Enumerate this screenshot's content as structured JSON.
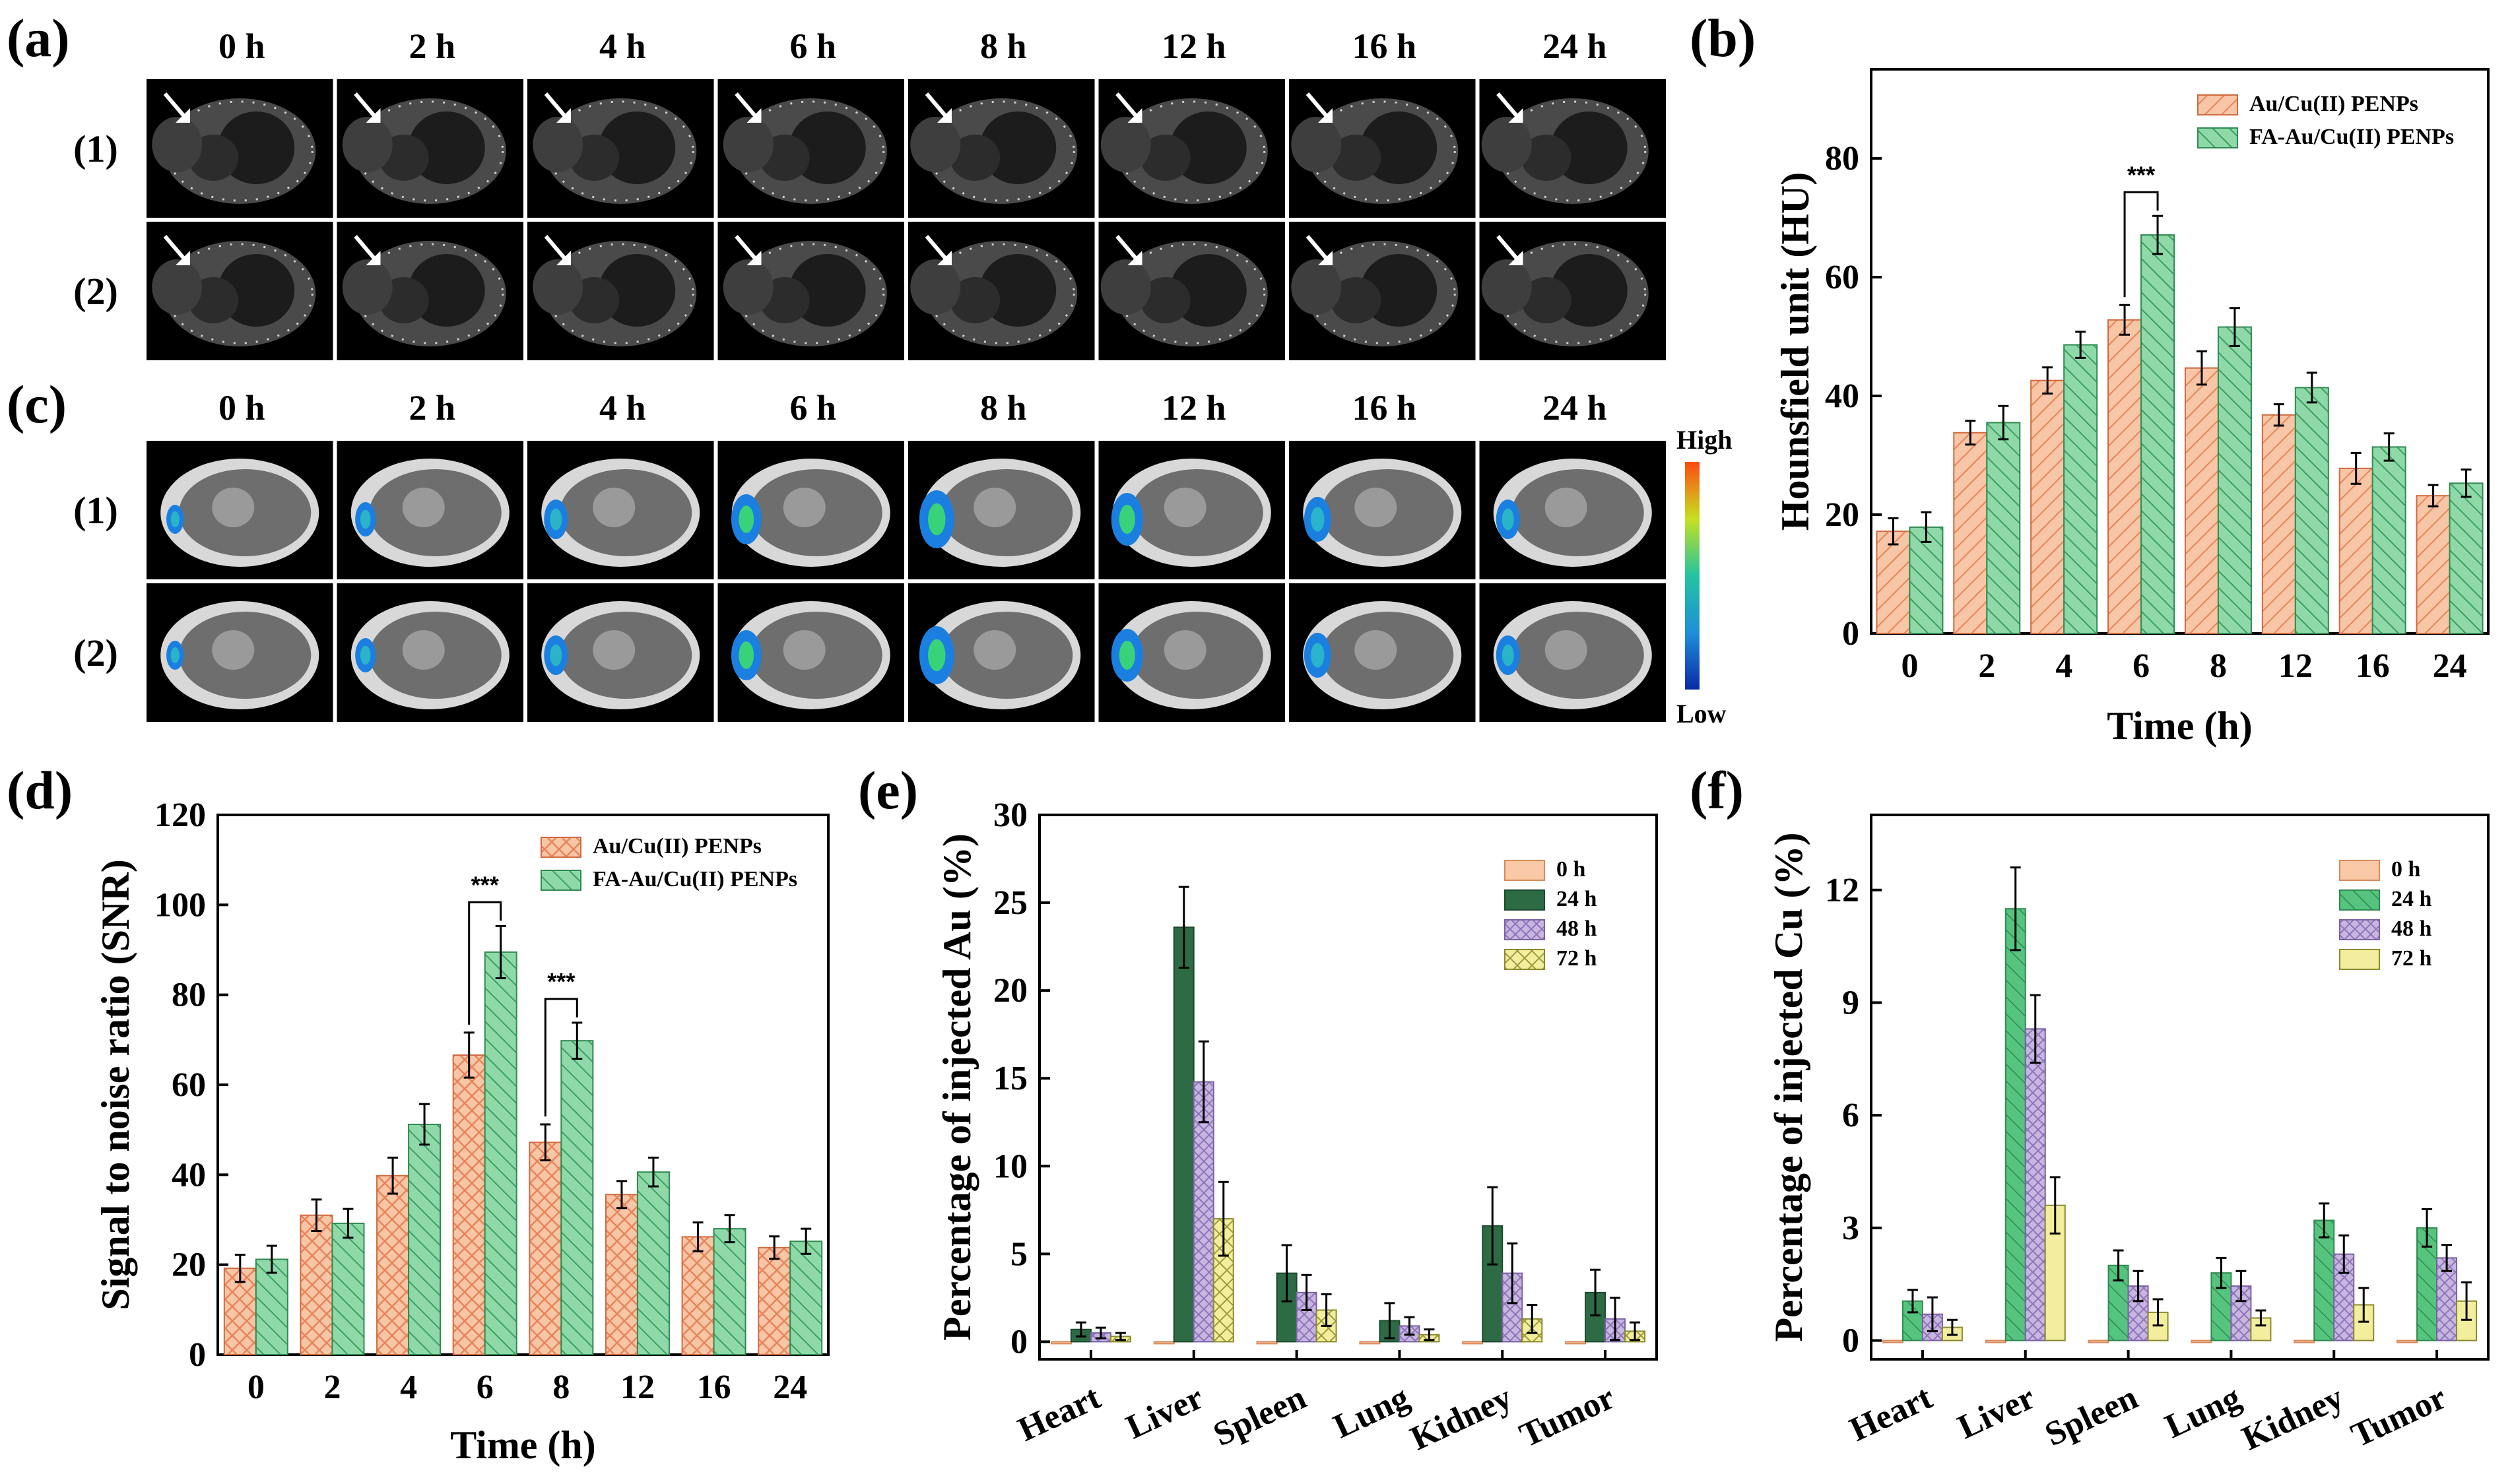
{
  "panel_labels": {
    "a": "(a)",
    "b": "(b)",
    "c": "(c)",
    "d": "(d)",
    "e": "(e)",
    "f": "(f)"
  },
  "image_panels": {
    "time_labels": [
      "0 h",
      "2 h",
      "4 h",
      "6 h",
      "8 h",
      "12 h",
      "16 h",
      "24 h"
    ],
    "row_labels": [
      "(1)",
      "(2)"
    ],
    "colorbar": {
      "high": "High",
      "low": "Low"
    }
  },
  "colors": {
    "au_fill": "#f6c6a6",
    "au_stroke": "#e8845a",
    "fa_fill": "#8fd9a8",
    "fa_stroke": "#3c9e62",
    "h0": "#f9c9a8",
    "h24": "#2d6b45",
    "h24f": "#56c47e",
    "h48": "#c7b6e0",
    "h72": "#f2ee9e"
  },
  "chart_data": [
    {
      "id": "b",
      "type": "bar",
      "title": "",
      "categories": [
        "0",
        "2",
        "4",
        "6",
        "8",
        "12",
        "16",
        "24"
      ],
      "series": [
        {
          "name": "Au/Cu(II) PENPs",
          "values": [
            17.2,
            33.8,
            42.6,
            52.8,
            44.7,
            36.8,
            27.8,
            23.2
          ],
          "errors": [
            2.2,
            2.0,
            2.2,
            2.5,
            2.8,
            1.8,
            2.6,
            1.8
          ]
        },
        {
          "name": "FA-Au/Cu(II) PENPs",
          "values": [
            17.9,
            35.5,
            48.6,
            67.1,
            51.6,
            41.4,
            31.4,
            25.3
          ],
          "errors": [
            2.5,
            2.8,
            2.2,
            3.2,
            3.2,
            2.5,
            2.3,
            2.3
          ]
        }
      ],
      "xlabel": "Time (h)",
      "ylabel": "Hounsfield unit (HU)",
      "ylim": [
        0,
        95
      ],
      "yticks": [
        0,
        20,
        40,
        60,
        80
      ],
      "legend_position": "top-right",
      "annotations": [
        {
          "text": "***",
          "between": "6"
        }
      ]
    },
    {
      "id": "d",
      "type": "bar",
      "title": "",
      "categories": [
        "0",
        "2",
        "4",
        "6",
        "8",
        "12",
        "16",
        "24"
      ],
      "series": [
        {
          "name": "Au/Cu(II) PENPs",
          "values": [
            19.2,
            31.0,
            39.8,
            66.6,
            47.2,
            35.6,
            26.2,
            23.8
          ],
          "errors": [
            3.0,
            3.5,
            4.0,
            5.0,
            4.0,
            3.0,
            3.2,
            2.5
          ]
        },
        {
          "name": "FA-Au/Cu(II) PENPs",
          "values": [
            21.2,
            29.2,
            51.2,
            89.5,
            69.8,
            40.6,
            28.0,
            25.2
          ],
          "errors": [
            3.0,
            3.2,
            4.5,
            5.8,
            4.0,
            3.2,
            3.0,
            2.8
          ]
        }
      ],
      "xlabel": "Time (h)",
      "ylabel": "Signal to noise ratio (SNR)",
      "ylim": [
        0,
        120
      ],
      "yticks": [
        0,
        20,
        40,
        60,
        80,
        100,
        120
      ],
      "legend_position": "top-right",
      "annotations": [
        {
          "text": "***",
          "between": "6"
        },
        {
          "text": "***",
          "between": "8"
        }
      ]
    },
    {
      "id": "e",
      "type": "bar",
      "title": "",
      "categories": [
        "Heart",
        "Liver",
        "Spleen",
        "Lung",
        "Kidney",
        "Tumor"
      ],
      "series": [
        {
          "name": "0 h",
          "values": [
            0,
            0,
            0,
            0,
            0,
            0
          ],
          "errors": [
            0,
            0,
            0,
            0,
            0,
            0
          ]
        },
        {
          "name": "24 h",
          "values": [
            0.7,
            23.6,
            3.9,
            1.2,
            6.6,
            2.8
          ],
          "errors": [
            0.4,
            2.3,
            1.6,
            1.0,
            2.2,
            1.3
          ]
        },
        {
          "name": "48 h",
          "values": [
            0.5,
            14.8,
            2.8,
            0.9,
            3.9,
            1.3
          ],
          "errors": [
            0.3,
            2.3,
            1.0,
            0.5,
            1.7,
            1.2
          ]
        },
        {
          "name": "72 h",
          "values": [
            0.3,
            7.0,
            1.8,
            0.4,
            1.3,
            0.6
          ],
          "errors": [
            0.2,
            2.1,
            0.9,
            0.3,
            0.8,
            0.5
          ]
        }
      ],
      "xlabel": "",
      "ylabel": "Percentage of injected Au (%)",
      "ylim": [
        -1,
        30
      ],
      "yticks": [
        0,
        5,
        10,
        15,
        20,
        25,
        30
      ],
      "legend_position": "top-right"
    },
    {
      "id": "f",
      "type": "bar",
      "title": "",
      "categories": [
        "Heart",
        "Liver",
        "Spleen",
        "Lung",
        "Kidney",
        "Tumor"
      ],
      "series": [
        {
          "name": "0 h",
          "values": [
            0,
            0,
            0,
            0,
            0,
            0
          ],
          "errors": [
            0,
            0,
            0,
            0,
            0,
            0
          ]
        },
        {
          "name": "24 h",
          "values": [
            1.05,
            11.5,
            2.0,
            1.8,
            3.2,
            3.0
          ],
          "errors": [
            0.3,
            1.1,
            0.4,
            0.4,
            0.45,
            0.5
          ]
        },
        {
          "name": "48 h",
          "values": [
            0.7,
            8.3,
            1.45,
            1.45,
            2.3,
            2.2
          ],
          "errors": [
            0.45,
            0.9,
            0.4,
            0.4,
            0.5,
            0.35
          ]
        },
        {
          "name": "72 h",
          "values": [
            0.35,
            3.6,
            0.75,
            0.6,
            0.95,
            1.05
          ],
          "errors": [
            0.2,
            0.75,
            0.35,
            0.2,
            0.45,
            0.5
          ]
        }
      ],
      "xlabel": "",
      "ylabel": "Percentage of injected Cu (%)",
      "ylim": [
        -0.5,
        14
      ],
      "yticks": [
        0,
        3,
        6,
        9,
        12
      ],
      "legend_position": "top-right"
    }
  ]
}
